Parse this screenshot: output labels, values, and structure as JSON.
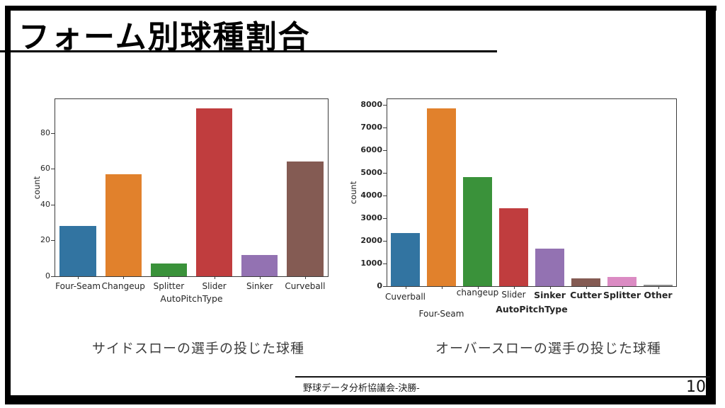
{
  "slide": {
    "title": "フォーム別球種割合",
    "captions": {
      "left": "サイドスローの選手の投じた球種",
      "right": "オーバースローの選手の投じた球種"
    },
    "footer": {
      "text": "野球データ分析協議会-決勝-",
      "page_number": "10"
    }
  },
  "colors": {
    "frame": "#000000",
    "caption_text": "#3d3d3d",
    "axis_spine": "#3c3c3c",
    "tick_text": "#262626"
  },
  "chart_data": [
    {
      "type": "bar",
      "title": "",
      "xlabel": "AutoPitchType",
      "ylabel": "count",
      "categories": [
        "Four-Seam",
        "Changeup",
        "Splitter",
        "Slider",
        "Sinker",
        "Curveball"
      ],
      "values": [
        28,
        57,
        7,
        94,
        12,
        64
      ],
      "bar_colors": [
        "#3274a1",
        "#e1812c",
        "#3a923a",
        "#c03d3e",
        "#9372b2",
        "#845b53"
      ],
      "yticks": [
        0,
        20,
        40,
        60,
        80
      ],
      "ylim": [
        0,
        99
      ],
      "grid": "off",
      "legend": "none"
    },
    {
      "type": "bar",
      "title": "",
      "xlabel": "AutoPitchType",
      "ylabel": "count",
      "categories": [
        "Cuverball",
        "Four-Seam",
        "changeup",
        "Slider",
        "Sinker",
        "Cutter",
        "Splitter",
        "Other"
      ],
      "values": [
        2350,
        7850,
        4800,
        3450,
        1650,
        330,
        420,
        50
      ],
      "bar_colors": [
        "#3274a1",
        "#e1812c",
        "#3a923a",
        "#c03d3e",
        "#9372b2",
        "#845b53",
        "#db8bc3",
        "#8d8d8d"
      ],
      "yticks": [
        0,
        1000,
        2000,
        3000,
        4000,
        5000,
        6000,
        7000,
        8000
      ],
      "ylim": [
        0,
        8250
      ],
      "grid": "off",
      "legend": "none"
    }
  ]
}
